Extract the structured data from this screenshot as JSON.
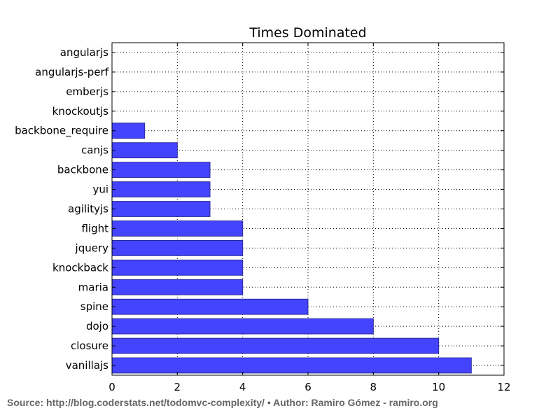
{
  "chart_data": {
    "type": "bar",
    "orientation": "horizontal",
    "title": "Times Dominated",
    "xlabel": "",
    "ylabel": "",
    "categories": [
      "angularjs",
      "angularjs-perf",
      "emberjs",
      "knockoutjs",
      "backbone_require",
      "canjs",
      "backbone",
      "yui",
      "agilityjs",
      "flight",
      "jquery",
      "knockback",
      "maria",
      "spine",
      "dojo",
      "closure",
      "vanillajs"
    ],
    "values": [
      0,
      0,
      0,
      0,
      1,
      2,
      3,
      3,
      3,
      4,
      4,
      4,
      4,
      6,
      8,
      10,
      11
    ],
    "xlim": [
      0,
      12
    ],
    "xticks": [
      "0",
      "2",
      "4",
      "6",
      "8",
      "10",
      "12"
    ],
    "grid": true,
    "legend": "none",
    "bar_color": "#4444ff",
    "bar_edge_color": "#2a2a99"
  },
  "footer": {
    "source_text": "Source: http://blog.coderstats.net/todomvc-complexity/ • Author: Ramiro Gómez - ramiro.org"
  }
}
